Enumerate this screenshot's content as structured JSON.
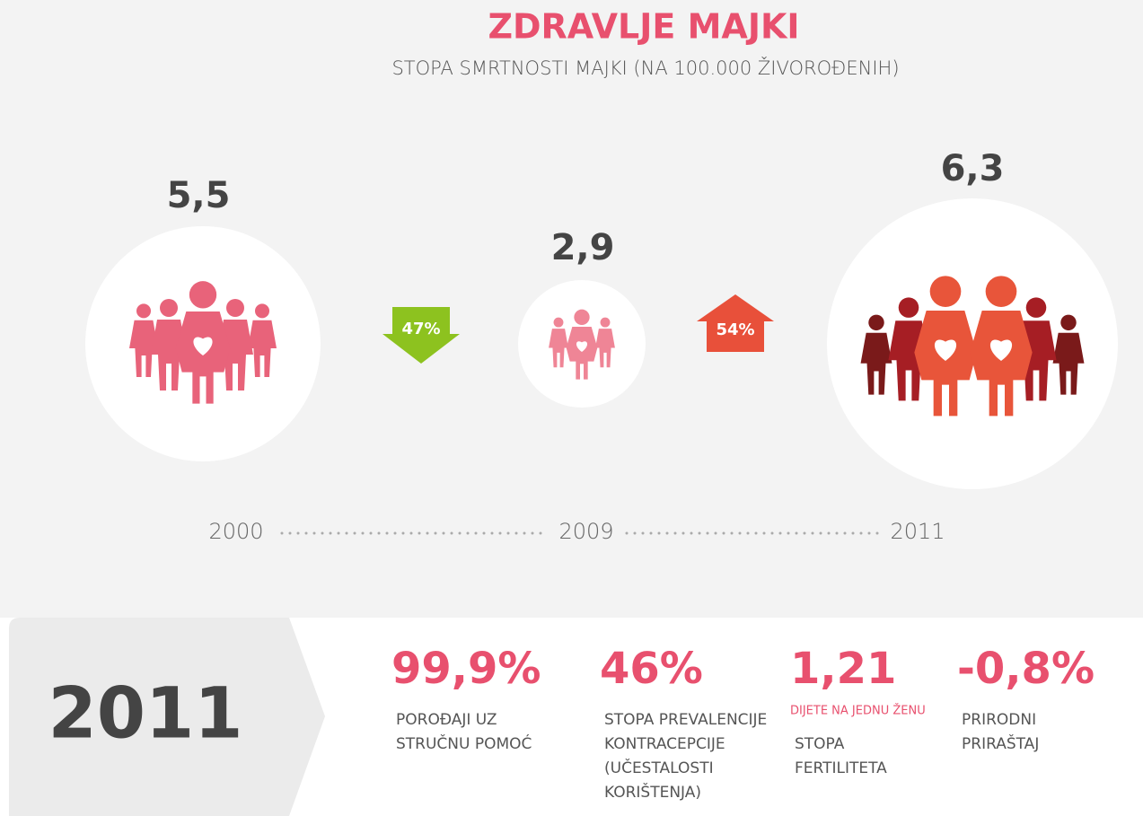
{
  "header": {
    "title": "ZDRAVLJE MAJKI",
    "subtitle": "STOPA SMRTNOSTI MAJKI (NA 100.000 ŽIVOROĐENIH)"
  },
  "timeline": {
    "points": [
      {
        "value": "5,5",
        "year": "2000"
      },
      {
        "value": "2,9",
        "year": "2009"
      },
      {
        "value": "6,3",
        "year": "2011"
      }
    ],
    "changes": [
      "47%",
      "54%"
    ]
  },
  "stats": {
    "year": "2011",
    "items": [
      {
        "value": "99,9%",
        "lines": [
          "POROĐAJI UZ",
          "STRUČNU POMOĆ"
        ]
      },
      {
        "value": "46%",
        "lines": [
          "STOPA PREVALENCIJE",
          "KONTRACEPCIJE",
          "(UČESTALOSTI",
          "KORIŠTENJA)"
        ]
      },
      {
        "value": "1,21",
        "note": "DIJETE NA JEDNU ŽENU",
        "lines": [
          "STOPA",
          "FERTILITETA"
        ]
      },
      {
        "value": "-0,8%",
        "lines": [
          "PRIRODNI",
          "PRIRAŠTAJ"
        ]
      }
    ]
  }
}
